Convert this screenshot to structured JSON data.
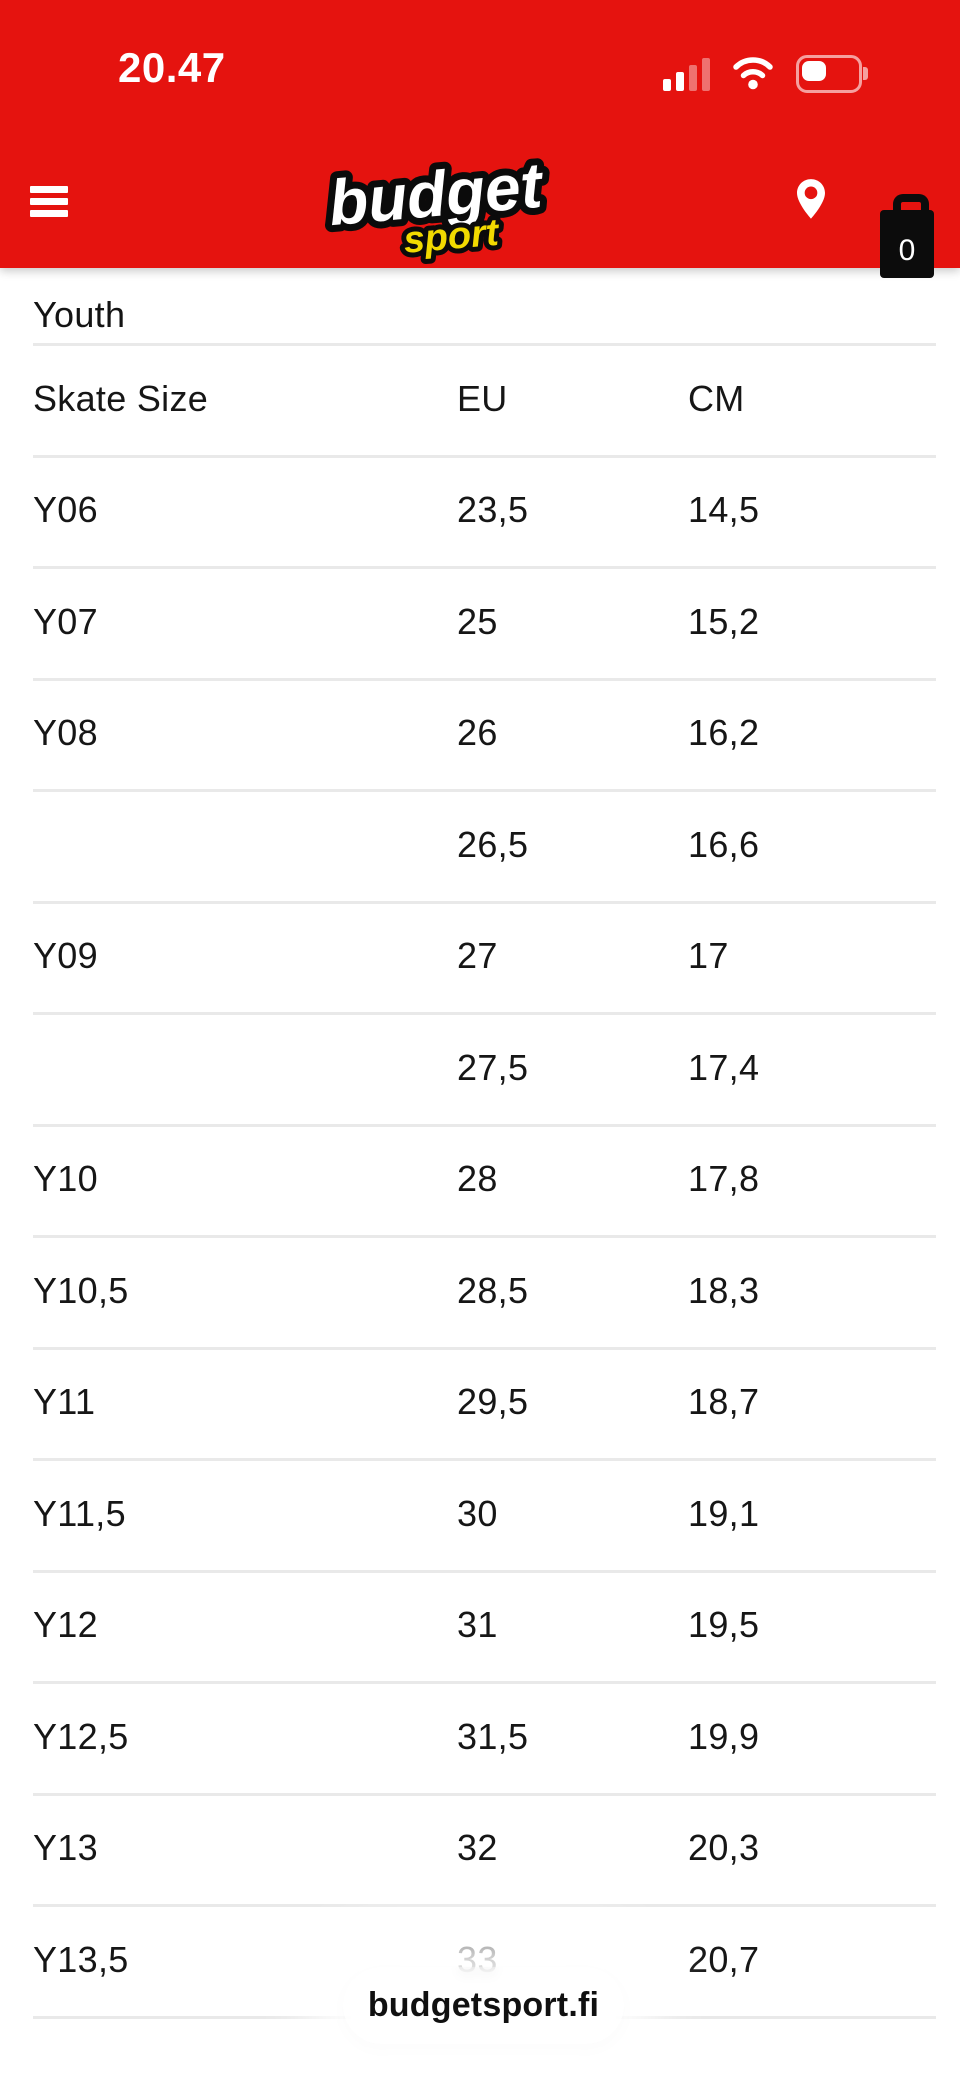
{
  "status_bar": {
    "time": "20.47",
    "icons": [
      "cellular-signal-icon",
      "wifi-icon",
      "battery-icon"
    ],
    "battery_level_percent": 45
  },
  "header": {
    "logo_primary": "budget",
    "logo_secondary": "sport",
    "cart_count": "0",
    "icons": [
      "menu-icon",
      "location-pin-icon",
      "cart-bag-icon"
    ]
  },
  "colors": {
    "header_red": "#e5130f",
    "logo_yellow": "#f2da00",
    "logo_outline": "#0b0b0b",
    "divider_gray": "#e9e9e9",
    "text_dark": "#161616"
  },
  "section": {
    "title": "Youth"
  },
  "table": {
    "columns": [
      "Skate Size",
      "EU",
      "CM"
    ],
    "rows": [
      [
        "Y06",
        "23,5",
        "14,5"
      ],
      [
        "Y07",
        "25",
        "15,2"
      ],
      [
        "Y08",
        "26",
        "16,2"
      ],
      [
        "",
        "26,5",
        "16,6"
      ],
      [
        "Y09",
        "27",
        "17"
      ],
      [
        "",
        "27,5",
        "17,4"
      ],
      [
        "Y10",
        "28",
        "17,8"
      ],
      [
        "Y10,5",
        "28,5",
        "18,3"
      ],
      [
        "Y11",
        "29,5",
        "18,7"
      ],
      [
        "Y11,5",
        "30",
        "19,1"
      ],
      [
        "Y12",
        "31",
        "19,5"
      ],
      [
        "Y12,5",
        "31,5",
        "19,9"
      ],
      [
        "Y13",
        "32",
        "20,3"
      ],
      [
        "Y13,5",
        "33",
        "20,7"
      ]
    ]
  },
  "url_pill": {
    "label": "budgetsport.fi"
  }
}
